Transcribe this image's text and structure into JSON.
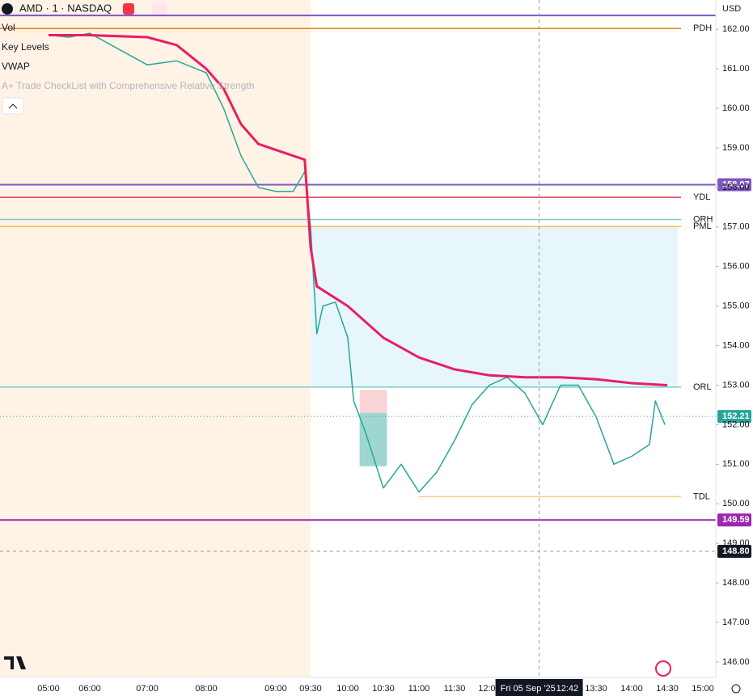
{
  "header": {
    "currency": "USD"
  },
  "indicators": [
    "Vol",
    "Key Levels",
    "A+ Trade CheckList with Comprehensive Relative Strength"
  ],
  "chart_data": {
    "type": "line",
    "ylim": [
      145.61,
      162.74
    ],
    "yticks": [
      {
        "value": 146,
        "label": "146.00"
      },
      {
        "value": 147,
        "label": "147.00"
      },
      {
        "value": 148,
        "label": "148.00"
      },
      {
        "value": 149,
        "label": "149.00"
      },
      {
        "value": 150,
        "label": "150.00"
      },
      {
        "value": 151,
        "label": "151.00"
      },
      {
        "value": 152,
        "label": "152.00"
      },
      {
        "value": 153,
        "label": "153.00"
      },
      {
        "value": 154,
        "label": "154.00"
      },
      {
        "value": 155,
        "label": "155.00"
      },
      {
        "value": 156,
        "label": "156.00"
      },
      {
        "value": 157,
        "label": "157.00"
      },
      {
        "value": 158,
        "label": "158.00"
      },
      {
        "value": 159,
        "label": "159.00"
      },
      {
        "value": 160,
        "label": "160.00"
      },
      {
        "value": 161,
        "label": "161.00"
      },
      {
        "value": 162,
        "label": "162.00"
      }
    ],
    "xticks": [
      "05:00",
      "06:00",
      "07:00",
      "08:00",
      "09:00",
      "09:30",
      "10:00",
      "10:30",
      "11:00",
      "11:30",
      "12:00",
      "13:30",
      "14:00",
      "14:30",
      "15:00"
    ],
    "premarket": {
      "from": "05:00",
      "to": "09:30",
      "color": "#fff3e6"
    },
    "series": [
      {
        "name": "AMD · 1 · NASDAQ",
        "color": "#26a69a",
        "x": [
          "05:00",
          "05:30",
          "06:00",
          "06:30",
          "07:00",
          "07:30",
          "08:00",
          "08:15",
          "08:30",
          "08:45",
          "09:00",
          "09:15",
          "09:25",
          "09:30",
          "09:35",
          "09:40",
          "09:50",
          "10:00",
          "10:05",
          "10:15",
          "10:30",
          "10:45",
          "11:00",
          "11:15",
          "11:30",
          "11:45",
          "12:00",
          "12:15",
          "12:30",
          "12:45",
          "13:00",
          "13:15",
          "13:30",
          "13:45",
          "14:00",
          "14:15",
          "14:20",
          "14:28"
        ],
        "values": [
          161.85,
          161.8,
          161.9,
          161.5,
          161.1,
          161.2,
          160.9,
          160.0,
          158.8,
          158.0,
          157.9,
          157.9,
          158.4,
          157.0,
          154.3,
          155.0,
          155.1,
          154.2,
          152.6,
          151.8,
          150.4,
          151.0,
          150.3,
          150.8,
          151.6,
          152.5,
          153.0,
          153.2,
          152.8,
          152.0,
          153.0,
          153.0,
          152.2,
          151.0,
          151.2,
          151.5,
          152.6,
          152.0
        ]
      },
      {
        "name": "VWAP",
        "color": "#e91e63",
        "x": [
          "05:00",
          "06:00",
          "07:00",
          "07:30",
          "08:00",
          "08:15",
          "08:30",
          "08:45",
          "09:00",
          "09:25",
          "09:30",
          "09:35",
          "10:00",
          "10:30",
          "11:00",
          "11:30",
          "12:00",
          "12:30",
          "13:00",
          "13:30",
          "14:00",
          "14:30"
        ],
        "values": [
          161.85,
          161.85,
          161.8,
          161.6,
          161.0,
          160.5,
          159.6,
          159.1,
          158.95,
          158.7,
          156.5,
          155.5,
          155.0,
          154.2,
          153.7,
          153.4,
          153.25,
          153.2,
          153.2,
          153.15,
          153.05,
          153.0
        ]
      }
    ],
    "levels": [
      {
        "label": null,
        "value": 162.35,
        "color": "#7e57c2",
        "tag": false
      },
      {
        "label": "PDH",
        "value": 162.02,
        "color": "#f57c00",
        "tag": false
      },
      {
        "label": null,
        "value": 158.07,
        "color": "#7e57c2",
        "tag": true
      },
      {
        "label": "YDL",
        "value": 157.75,
        "color": "#e53950",
        "tag": false
      },
      {
        "label": "ORH",
        "value": 157.19,
        "color": "#80cbc4",
        "tag": false
      },
      {
        "label": "PML",
        "value": 157.01,
        "color": "#ffb74d",
        "tag": false
      },
      {
        "label": "ORL",
        "value": 152.95,
        "color": "#80cbc4",
        "tag": false
      },
      {
        "label": "TDL",
        "value": 150.18,
        "color": "#ffcc80",
        "tag": false
      },
      {
        "label": null,
        "value": 149.59,
        "color": "#9c27b0",
        "tag": true
      }
    ],
    "range_box": {
      "from": "09:30",
      "to": "14:39",
      "top": 157.01,
      "bottom": 152.95,
      "color": "#e6f6fb"
    },
    "position": {
      "from": "10:10",
      "to": "10:33",
      "entry": 152.3,
      "stop": 152.88,
      "target": 150.95
    },
    "last_price": {
      "value": 152.21,
      "color": "#26a69a"
    },
    "crosshair": {
      "date": "Fri 05 Sep '25",
      "time": "12:42",
      "price": {
        "value": 148.8,
        "label": "148.80"
      }
    }
  }
}
